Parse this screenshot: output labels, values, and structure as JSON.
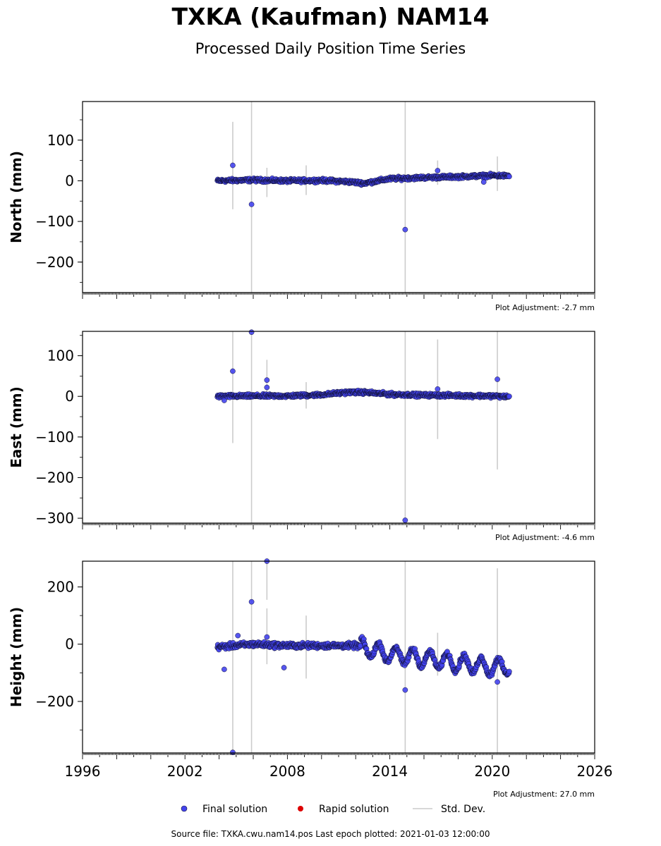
{
  "title": "TXKA (Kaufman) NAM14",
  "subtitle": "Processed Daily Position Time Series",
  "footer": "Source file: TXKA.cwu.nam14.pos  Last epoch plotted: 2021-01-03 12:00:00",
  "legend": {
    "final": "Final solution",
    "rapid": "Rapid solution",
    "std": "Std. Dev."
  },
  "colors": {
    "final": "#4444ee",
    "final_edge": "#111133",
    "rapid": "#dd0000",
    "std": "#cccccc",
    "axis": "#000000"
  },
  "chart_data": [
    {
      "type": "scatter",
      "ylabel": "North (mm)",
      "xlim": [
        1996,
        2026
      ],
      "ylim": [
        -275,
        195
      ],
      "x_ticks": [
        "1996",
        "2002",
        "2008",
        "2014",
        "2020",
        "2026"
      ],
      "y_ticks": [
        100,
        0,
        -100,
        -200
      ],
      "y_tick_labels": [
        "100",
        "0",
        "−100",
        "−200"
      ],
      "adjustment": "Plot Adjustment: -2.7 mm",
      "trend": [
        [
          2003.9,
          0
        ],
        [
          2006,
          2
        ],
        [
          2008,
          0
        ],
        [
          2010,
          1
        ],
        [
          2011.5,
          -2
        ],
        [
          2012.5,
          -6
        ],
        [
          2014,
          5
        ],
        [
          2016,
          8
        ],
        [
          2018,
          10
        ],
        [
          2020,
          13
        ],
        [
          2021,
          12
        ]
      ],
      "scatter": 4,
      "outliers": [
        [
          2004.8,
          38
        ],
        [
          2005.9,
          -58
        ],
        [
          2014.9,
          -120
        ],
        [
          2016.8,
          25
        ],
        [
          2019.5,
          -3
        ]
      ],
      "std_bars": [
        [
          2004.8,
          -70,
          145
        ],
        [
          2005.9,
          -275,
          195
        ],
        [
          2006.8,
          -40,
          32
        ],
        [
          2009.1,
          -35,
          38
        ],
        [
          2014.9,
          -275,
          195
        ],
        [
          2016.8,
          -10,
          50
        ],
        [
          2020.3,
          -25,
          60
        ]
      ]
    },
    {
      "type": "scatter",
      "ylabel": "East (mm)",
      "xlim": [
        1996,
        2026
      ],
      "ylim": [
        -312,
        160
      ],
      "x_ticks": [
        "1996",
        "2002",
        "2008",
        "2014",
        "2020",
        "2026"
      ],
      "y_ticks": [
        100,
        0,
        -100,
        -200,
        -300
      ],
      "y_tick_labels": [
        "100",
        "0",
        "−100",
        "−200",
        "−300"
      ],
      "adjustment": "Plot Adjustment: -4.6 mm",
      "trend": [
        [
          2003.9,
          0
        ],
        [
          2006,
          1
        ],
        [
          2008,
          1
        ],
        [
          2010,
          4
        ],
        [
          2011.5,
          10
        ],
        [
          2012.5,
          10
        ],
        [
          2014,
          5
        ],
        [
          2016,
          3
        ],
        [
          2018,
          2
        ],
        [
          2020,
          1
        ],
        [
          2021,
          -1
        ]
      ],
      "scatter": 4,
      "outliers": [
        [
          2004.8,
          62
        ],
        [
          2005.9,
          158
        ],
        [
          2006.8,
          40
        ],
        [
          2006.8,
          22
        ],
        [
          2004.3,
          -10
        ],
        [
          2014.9,
          -305
        ],
        [
          2016.8,
          18
        ],
        [
          2020.3,
          42
        ]
      ],
      "std_bars": [
        [
          2004.8,
          -115,
          160
        ],
        [
          2005.9,
          -312,
          160
        ],
        [
          2006.8,
          -5,
          90
        ],
        [
          2009.1,
          -30,
          35
        ],
        [
          2014.9,
          -312,
          160
        ],
        [
          2016.8,
          -105,
          140
        ],
        [
          2020.3,
          -180,
          160
        ]
      ]
    },
    {
      "type": "scatter",
      "ylabel": "Height (mm)",
      "xlim": [
        1996,
        2026
      ],
      "ylim": [
        -380,
        290
      ],
      "x_ticks": [
        "1996",
        "2002",
        "2008",
        "2014",
        "2020",
        "2026"
      ],
      "y_ticks": [
        200,
        0,
        -200
      ],
      "y_tick_labels": [
        "200",
        "0",
        "−200"
      ],
      "adjustment": "Plot Adjustment: 27.0 mm",
      "trend": [
        [
          2003.9,
          -10
        ],
        [
          2006,
          0
        ],
        [
          2008,
          -5
        ],
        [
          2010,
          -5
        ],
        [
          2012,
          -5
        ],
        [
          2014,
          -35
        ],
        [
          2016,
          -50
        ],
        [
          2018,
          -65
        ],
        [
          2020,
          -80
        ],
        [
          2021,
          -75
        ]
      ],
      "seasonal_start": 2012.3,
      "seasonal_amp": 28,
      "scatter": 9,
      "outliers": [
        [
          2004.3,
          -88
        ],
        [
          2005.1,
          30
        ],
        [
          2005.9,
          148
        ],
        [
          2006.8,
          290
        ],
        [
          2006.8,
          25
        ],
        [
          2007.8,
          -82
        ],
        [
          2014.9,
          -160
        ],
        [
          2020.3,
          -132
        ],
        [
          2004.8,
          -378
        ]
      ],
      "std_bars": [
        [
          2004.8,
          -380,
          290
        ],
        [
          2005.9,
          -380,
          290
        ],
        [
          2006.8,
          155,
          290
        ],
        [
          2006.8,
          -70,
          125
        ],
        [
          2009.1,
          -120,
          100
        ],
        [
          2014.9,
          -380,
          290
        ],
        [
          2016.8,
          -110,
          40
        ],
        [
          2020.3,
          -380,
          265
        ]
      ]
    }
  ]
}
